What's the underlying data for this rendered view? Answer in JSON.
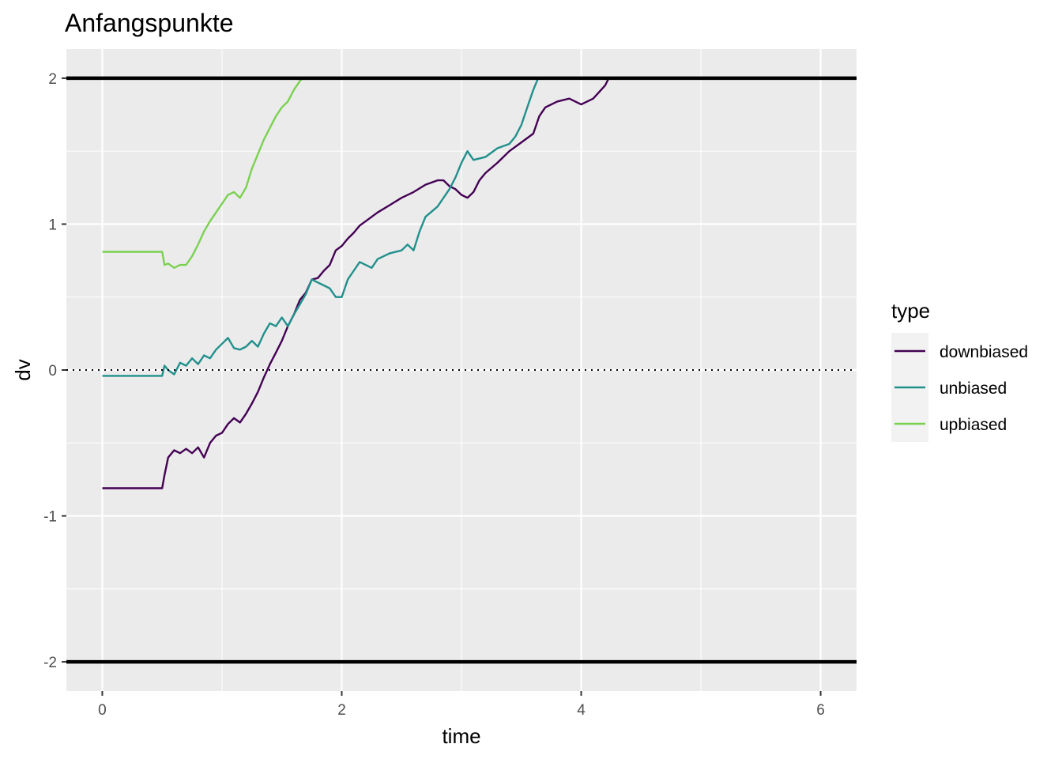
{
  "chart_data": {
    "type": "line",
    "title": "Anfangspunkte",
    "xlabel": "time",
    "ylabel": "dv",
    "xlim": [
      -0.3,
      6.3
    ],
    "ylim": [
      -2.2,
      2.2
    ],
    "x_ticks": [
      0,
      2,
      4,
      6
    ],
    "x_tick_labels": [
      "0",
      "2",
      "4",
      "6"
    ],
    "y_ticks": [
      -2,
      -1,
      0,
      1,
      2
    ],
    "y_tick_labels": [
      "-2",
      "-1",
      "0",
      "1",
      "2"
    ],
    "grid": true,
    "legend": {
      "title": "type",
      "position": "right"
    },
    "reference_lines": [
      {
        "y": 2,
        "style": "solid",
        "color": "#000000"
      },
      {
        "y": -2,
        "style": "solid",
        "color": "#000000"
      },
      {
        "y": 0,
        "style": "dotted",
        "color": "#000000"
      }
    ],
    "series": [
      {
        "name": "downbiased",
        "color": "#440154",
        "points": [
          [
            0,
            -0.81
          ],
          [
            0.5,
            -0.81
          ],
          [
            0.52,
            -0.72
          ],
          [
            0.55,
            -0.6
          ],
          [
            0.6,
            -0.55
          ],
          [
            0.65,
            -0.57
          ],
          [
            0.7,
            -0.54
          ],
          [
            0.75,
            -0.57
          ],
          [
            0.8,
            -0.53
          ],
          [
            0.85,
            -0.6
          ],
          [
            0.9,
            -0.5
          ],
          [
            0.95,
            -0.45
          ],
          [
            1.0,
            -0.43
          ],
          [
            1.05,
            -0.37
          ],
          [
            1.1,
            -0.33
          ],
          [
            1.15,
            -0.36
          ],
          [
            1.2,
            -0.3
          ],
          [
            1.25,
            -0.23
          ],
          [
            1.3,
            -0.15
          ],
          [
            1.35,
            -0.05
          ],
          [
            1.4,
            0.04
          ],
          [
            1.45,
            0.12
          ],
          [
            1.5,
            0.2
          ],
          [
            1.55,
            0.3
          ],
          [
            1.6,
            0.38
          ],
          [
            1.65,
            0.48
          ],
          [
            1.7,
            0.53
          ],
          [
            1.75,
            0.62
          ],
          [
            1.8,
            0.63
          ],
          [
            1.85,
            0.68
          ],
          [
            1.9,
            0.72
          ],
          [
            1.95,
            0.82
          ],
          [
            2.0,
            0.85
          ],
          [
            2.05,
            0.9
          ],
          [
            2.1,
            0.94
          ],
          [
            2.15,
            0.99
          ],
          [
            2.2,
            1.02
          ],
          [
            2.3,
            1.08
          ],
          [
            2.4,
            1.13
          ],
          [
            2.5,
            1.18
          ],
          [
            2.6,
            1.22
          ],
          [
            2.7,
            1.27
          ],
          [
            2.8,
            1.3
          ],
          [
            2.85,
            1.3
          ],
          [
            2.9,
            1.26
          ],
          [
            2.95,
            1.24
          ],
          [
            3.0,
            1.2
          ],
          [
            3.05,
            1.18
          ],
          [
            3.1,
            1.22
          ],
          [
            3.15,
            1.3
          ],
          [
            3.2,
            1.35
          ],
          [
            3.3,
            1.42
          ],
          [
            3.4,
            1.5
          ],
          [
            3.5,
            1.56
          ],
          [
            3.6,
            1.62
          ],
          [
            3.65,
            1.74
          ],
          [
            3.7,
            1.8
          ],
          [
            3.8,
            1.84
          ],
          [
            3.9,
            1.86
          ],
          [
            4.0,
            1.82
          ],
          [
            4.1,
            1.86
          ],
          [
            4.2,
            1.95
          ],
          [
            4.23,
            2.0
          ]
        ]
      },
      {
        "name": "unbiased",
        "color": "#21908C",
        "points": [
          [
            0,
            -0.04
          ],
          [
            0.5,
            -0.04
          ],
          [
            0.52,
            0.03
          ],
          [
            0.55,
            0.0
          ],
          [
            0.6,
            -0.03
          ],
          [
            0.65,
            0.05
          ],
          [
            0.7,
            0.03
          ],
          [
            0.75,
            0.08
          ],
          [
            0.8,
            0.04
          ],
          [
            0.85,
            0.1
          ],
          [
            0.9,
            0.08
          ],
          [
            0.95,
            0.14
          ],
          [
            1.0,
            0.18
          ],
          [
            1.05,
            0.22
          ],
          [
            1.1,
            0.15
          ],
          [
            1.15,
            0.14
          ],
          [
            1.2,
            0.16
          ],
          [
            1.25,
            0.2
          ],
          [
            1.3,
            0.16
          ],
          [
            1.35,
            0.25
          ],
          [
            1.4,
            0.32
          ],
          [
            1.45,
            0.3
          ],
          [
            1.5,
            0.36
          ],
          [
            1.55,
            0.3
          ],
          [
            1.6,
            0.38
          ],
          [
            1.65,
            0.45
          ],
          [
            1.7,
            0.52
          ],
          [
            1.75,
            0.62
          ],
          [
            1.8,
            0.6
          ],
          [
            1.85,
            0.58
          ],
          [
            1.9,
            0.56
          ],
          [
            1.95,
            0.5
          ],
          [
            2.0,
            0.5
          ],
          [
            2.05,
            0.62
          ],
          [
            2.1,
            0.68
          ],
          [
            2.15,
            0.74
          ],
          [
            2.2,
            0.72
          ],
          [
            2.25,
            0.7
          ],
          [
            2.3,
            0.76
          ],
          [
            2.35,
            0.78
          ],
          [
            2.4,
            0.8
          ],
          [
            2.5,
            0.82
          ],
          [
            2.55,
            0.86
          ],
          [
            2.6,
            0.82
          ],
          [
            2.65,
            0.95
          ],
          [
            2.7,
            1.05
          ],
          [
            2.8,
            1.12
          ],
          [
            2.85,
            1.18
          ],
          [
            2.9,
            1.24
          ],
          [
            2.95,
            1.32
          ],
          [
            3.0,
            1.42
          ],
          [
            3.05,
            1.5
          ],
          [
            3.1,
            1.44
          ],
          [
            3.2,
            1.46
          ],
          [
            3.3,
            1.52
          ],
          [
            3.4,
            1.55
          ],
          [
            3.45,
            1.6
          ],
          [
            3.5,
            1.68
          ],
          [
            3.55,
            1.8
          ],
          [
            3.6,
            1.92
          ],
          [
            3.64,
            2.0
          ]
        ]
      },
      {
        "name": "upbiased",
        "color": "#7AD151",
        "points": [
          [
            0,
            0.81
          ],
          [
            0.5,
            0.81
          ],
          [
            0.52,
            0.72
          ],
          [
            0.55,
            0.73
          ],
          [
            0.6,
            0.7
          ],
          [
            0.65,
            0.72
          ],
          [
            0.7,
            0.72
          ],
          [
            0.75,
            0.78
          ],
          [
            0.8,
            0.86
          ],
          [
            0.85,
            0.95
          ],
          [
            0.9,
            1.02
          ],
          [
            0.95,
            1.08
          ],
          [
            1.0,
            1.14
          ],
          [
            1.05,
            1.2
          ],
          [
            1.1,
            1.22
          ],
          [
            1.15,
            1.18
          ],
          [
            1.2,
            1.25
          ],
          [
            1.25,
            1.38
          ],
          [
            1.3,
            1.48
          ],
          [
            1.35,
            1.58
          ],
          [
            1.4,
            1.66
          ],
          [
            1.45,
            1.74
          ],
          [
            1.5,
            1.8
          ],
          [
            1.55,
            1.84
          ],
          [
            1.6,
            1.92
          ],
          [
            1.65,
            1.98
          ],
          [
            1.67,
            2.0
          ]
        ]
      }
    ]
  }
}
